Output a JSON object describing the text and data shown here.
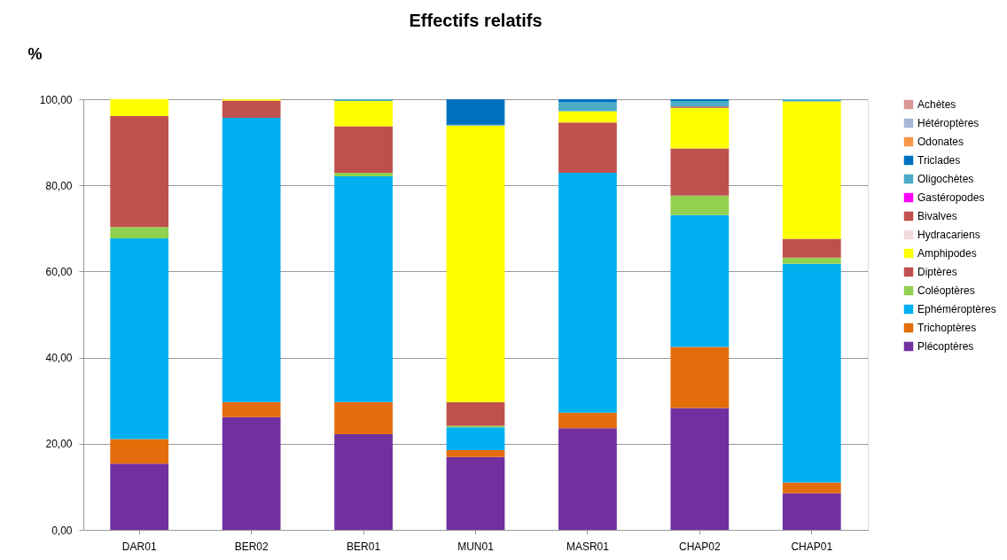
{
  "chart_data": {
    "type": "bar",
    "stacked": true,
    "title": "Effectifs relatifs",
    "ylabel": "%",
    "categories": [
      "DAR01",
      "BER02",
      "BER01",
      "MUN01",
      "MASR01",
      "CHAP02",
      "CHAP01"
    ],
    "series": [
      {
        "name": "Plécoptères",
        "color": "#7030a0",
        "values": [
          15.4,
          26.2,
          22.2,
          16.9,
          23.6,
          28.3,
          8.5
        ]
      },
      {
        "name": "Trichoptères",
        "color": "#e46c0a",
        "values": [
          5.7,
          3.5,
          7.5,
          1.6,
          3.6,
          14.2,
          2.5
        ]
      },
      {
        "name": "Ephéméroptères",
        "color": "#00b0f0",
        "values": [
          46.6,
          66.0,
          52.4,
          5.3,
          55.7,
          30.6,
          50.8
        ]
      },
      {
        "name": "Coléoptères",
        "color": "#92d050",
        "values": [
          2.6,
          null,
          0.8,
          0.4,
          null,
          4.5,
          1.4
        ]
      },
      {
        "name": "Diptères",
        "color": "#c0504d",
        "values": [
          25.8,
          4.0,
          10.8,
          5.5,
          11.7,
          11.0,
          4.4
        ]
      },
      {
        "name": "Amphipodes",
        "color": "#ffff00",
        "values": [
          3.9,
          0.3,
          5.9,
          64.2,
          2.6,
          9.4,
          31.9
        ]
      },
      {
        "name": "Hydracariens",
        "color": "#f2dcdb",
        "values": [
          null,
          null,
          null,
          null,
          null,
          null,
          null
        ]
      },
      {
        "name": "Bivalves",
        "color": "#c0504d",
        "values": [
          null,
          null,
          null,
          null,
          null,
          0.3,
          null
        ]
      },
      {
        "name": "Gastéropodes",
        "color": "#ff00ff",
        "values": [
          null,
          null,
          null,
          null,
          null,
          null,
          null
        ]
      },
      {
        "name": "Oligochètes",
        "color": "#4bacc6",
        "values": [
          null,
          null,
          0.4,
          0.2,
          2.1,
          1.3,
          0.5
        ]
      },
      {
        "name": "Triclades",
        "color": "#0070c0",
        "values": [
          null,
          null,
          null,
          5.9,
          0.7,
          0.4,
          null
        ]
      },
      {
        "name": "Odonates",
        "color": "#f79646",
        "values": [
          null,
          null,
          null,
          null,
          null,
          null,
          null
        ]
      },
      {
        "name": "Hétéroptères",
        "color": "#a5b6d9",
        "values": [
          null,
          null,
          null,
          null,
          null,
          null,
          null
        ]
      },
      {
        "name": "Achètes",
        "color": "#d99694",
        "values": [
          null,
          null,
          null,
          null,
          null,
          null,
          null
        ]
      }
    ],
    "ylim": [
      0,
      100
    ],
    "yticks": [
      {
        "value": 0,
        "label": "0,00"
      },
      {
        "value": 20,
        "label": "20,00"
      },
      {
        "value": 40,
        "label": "40,00"
      },
      {
        "value": 60,
        "label": "60,00"
      },
      {
        "value": 80,
        "label": "80,00"
      },
      {
        "value": 100,
        "label": "100,00"
      }
    ],
    "grid": "y",
    "legend": "right"
  }
}
